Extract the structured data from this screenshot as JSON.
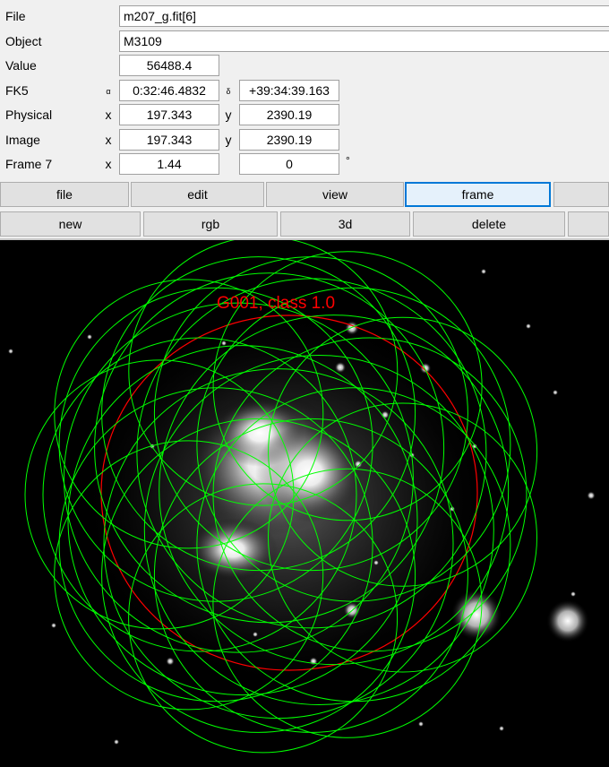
{
  "info": {
    "file": {
      "label": "File",
      "value": "m207_g.fit[6]"
    },
    "object": {
      "label": "Object",
      "value": "M3109"
    },
    "value": {
      "label": "Value",
      "value": "56488.4"
    },
    "fk5": {
      "label": "FK5",
      "alpha_sym": "α",
      "alpha": "0:32:46.4832",
      "delta_sym": "δ",
      "delta": "+39:34:39.163"
    },
    "physical": {
      "label": "Physical",
      "x_sym": "x",
      "x": "197.343",
      "y_sym": "y",
      "y": "2390.19"
    },
    "image": {
      "label": "Image",
      "x_sym": "x",
      "x": "197.343",
      "y_sym": "y",
      "y": "2390.19"
    },
    "frame": {
      "label": "Frame 7",
      "x_sym": "x",
      "zoom": "1.44",
      "angle": "0",
      "deg": "°"
    }
  },
  "menu_row1": [
    "file",
    "edit",
    "view",
    "frame"
  ],
  "menu_row2": [
    "new",
    "rgb",
    "3d",
    "delete"
  ],
  "region_label": "G001, class 1.0",
  "colors": {
    "region_green": "#00ff00",
    "region_red": "#ff0000",
    "active_border": "#0078d7"
  }
}
